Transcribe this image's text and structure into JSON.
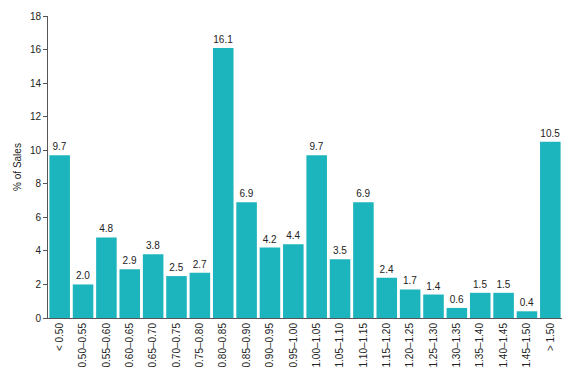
{
  "chart_data": {
    "type": "bar",
    "y_label": "% of Sales",
    "categories": [
      "< 0.50",
      "0.50–0.55",
      "0.55–0.60",
      "0.60–0.65",
      "0.65–0.70",
      "0.70–0.75",
      "0.75–0.80",
      "0.80–0.85",
      "0.85–0.90",
      "0.90–0.95",
      "0.95–1.00",
      "1.00–1.05",
      "1.05–1.10",
      "1.10–1.15",
      "1.15–1.20",
      "1.20–1.25",
      "1.25–1.30",
      "1.30–1.35",
      "1.35–1.40",
      "1.40–1.45",
      "1.45–1.50",
      "> 1.50"
    ],
    "values": [
      9.7,
      2.0,
      4.8,
      2.9,
      3.8,
      2.5,
      2.7,
      16.1,
      6.9,
      4.2,
      4.4,
      9.7,
      3.5,
      6.9,
      2.4,
      1.7,
      1.4,
      0.6,
      1.5,
      1.5,
      0.4,
      10.5
    ],
    "value_labels": [
      "9.7",
      "2.0",
      "4.8",
      "2.9",
      "3.8",
      "2.5",
      "2.7",
      "16.1",
      "6.9",
      "4.2",
      "4.4",
      "9.7",
      "3.5",
      "6.9",
      "2.4",
      "1.7",
      "1.4",
      "0.6",
      "1.5",
      "1.5",
      "0.4",
      "10.5"
    ],
    "color": "#1cb5bd",
    "ylim": [
      0,
      18
    ],
    "yticks": [
      0,
      2,
      4,
      6,
      8,
      10,
      12,
      14,
      16,
      18
    ],
    "grid": false,
    "data_labels": true
  }
}
